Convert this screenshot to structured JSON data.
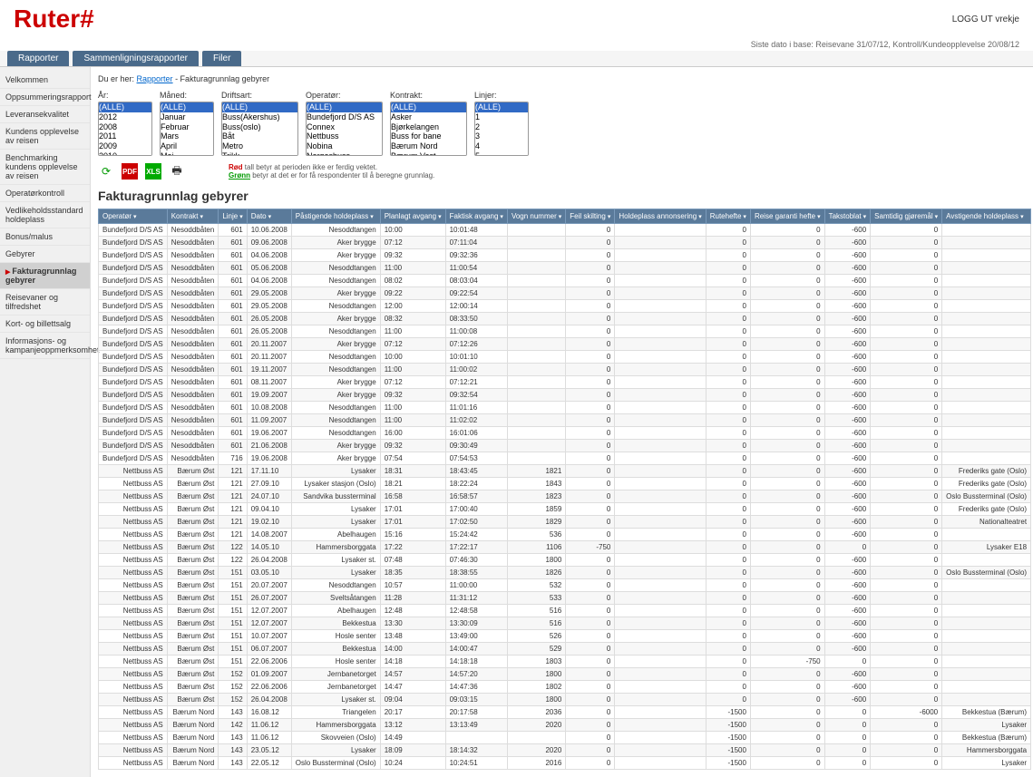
{
  "logo": "Ruter#",
  "logout_label": "LOGG UT",
  "logout_user": "vrekje",
  "infobar": "Siste dato i base: Reisevane 31/07/12, Kontroll/Kundeopplevelse 20/08/12",
  "tabs": [
    "Rapporter",
    "Sammenligningsrapporter",
    "Filer"
  ],
  "sidebar": [
    "Velkommen",
    "Oppsummeringsrapport",
    "Leveransekvalitet",
    "Kundens opplevelse av reisen",
    "Benchmarking kundens opplevelse av reisen",
    "Operatørkontroll",
    "Vedlikeholdsstandard holdeplass",
    "Bonus/malus",
    "Gebyrer",
    "Fakturagrunnlag gebyrer",
    "Reisevaner og tilfredshet",
    "Kort- og billettsalg",
    "Informasjons- og kampanjeoppmerksomhet"
  ],
  "sidebar_active": 9,
  "breadcrumb_prefix": "Du er her: ",
  "breadcrumb_link": "Rapporter",
  "breadcrumb_tail": " - Fakturagrunnlag gebyrer",
  "filters": {
    "ar": {
      "label": "År:",
      "options": [
        "(ALLE)",
        "2012",
        "2008",
        "2011",
        "2009",
        "2010"
      ]
    },
    "maned": {
      "label": "Måned:",
      "options": [
        "(ALLE)",
        "Januar",
        "Februar",
        "Mars",
        "April",
        "Mai"
      ]
    },
    "driftsart": {
      "label": "Driftsart:",
      "options": [
        "(ALLE)",
        "Buss(Akershus)",
        "Buss(oslo)",
        "Båt",
        "Metro",
        "Trikk"
      ]
    },
    "operator": {
      "label": "Operatør:",
      "options": [
        "(ALLE)",
        "Bundefjord D/S AS",
        "Connex",
        "Nettbuss",
        "Nobina",
        "Norgesbuss"
      ]
    },
    "kontrakt": {
      "label": "Kontrakt:",
      "options": [
        "(ALLE)",
        "Asker",
        "Bjørkelangen",
        "Buss for bane",
        "Bærum Nord",
        "Bærum Vest"
      ]
    },
    "linjer": {
      "label": "Linjer:",
      "options": [
        "(ALLE)",
        "1",
        "2",
        "3",
        "4",
        "5"
      ]
    }
  },
  "note_red": "Rød",
  "note_red_tail": " tall betyr at perioden ikke er ferdig vektet.",
  "note_green": "Grønn",
  "note_green_tail": " betyr at det er for få respondenter til å beregne grunnlag.",
  "section_title": "Fakturagrunnlag gebyrer",
  "columns": [
    "Operatør",
    "Kontrakt",
    "Linje",
    "Dato",
    "Påstigende holdeplass",
    "Planlagt avgang",
    "Faktisk avgang",
    "Vogn nummer",
    "Feil skilting",
    "Holdeplass annonsering",
    "Rutehefte",
    "Reise garanti hefte",
    "Takstoblat",
    "Samtidig gjøremål",
    "Avstigende holdeplass"
  ],
  "rows": [
    [
      "Bundefjord D/S AS",
      "Nesoddbåten",
      "601",
      "10.06.2008",
      "Nesoddtangen",
      "10:00",
      "10:01:48",
      "",
      "0",
      "",
      "0",
      "0",
      "-600",
      "0",
      ""
    ],
    [
      "Bundefjord D/S AS",
      "Nesoddbåten",
      "601",
      "09.06.2008",
      "Aker brygge",
      "07:12",
      "07:11:04",
      "",
      "0",
      "",
      "0",
      "0",
      "-600",
      "0",
      ""
    ],
    [
      "Bundefjord D/S AS",
      "Nesoddbåten",
      "601",
      "04.06.2008",
      "Aker brygge",
      "09:32",
      "09:32:36",
      "",
      "0",
      "",
      "0",
      "0",
      "-600",
      "0",
      ""
    ],
    [
      "Bundefjord D/S AS",
      "Nesoddbåten",
      "601",
      "05.06.2008",
      "Nesoddtangen",
      "11:00",
      "11:00:54",
      "",
      "0",
      "",
      "0",
      "0",
      "-600",
      "0",
      ""
    ],
    [
      "Bundefjord D/S AS",
      "Nesoddbåten",
      "601",
      "04.06.2008",
      "Nesoddtangen",
      "08:02",
      "08:03:04",
      "",
      "0",
      "",
      "0",
      "0",
      "-600",
      "0",
      ""
    ],
    [
      "Bundefjord D/S AS",
      "Nesoddbåten",
      "601",
      "29.05.2008",
      "Aker brygge",
      "09:22",
      "09:22:54",
      "",
      "0",
      "",
      "0",
      "0",
      "-600",
      "0",
      ""
    ],
    [
      "Bundefjord D/S AS",
      "Nesoddbåten",
      "601",
      "29.05.2008",
      "Nesoddtangen",
      "12:00",
      "12:00:14",
      "",
      "0",
      "",
      "0",
      "0",
      "-600",
      "0",
      ""
    ],
    [
      "Bundefjord D/S AS",
      "Nesoddbåten",
      "601",
      "26.05.2008",
      "Aker brygge",
      "08:32",
      "08:33:50",
      "",
      "0",
      "",
      "0",
      "0",
      "-600",
      "0",
      ""
    ],
    [
      "Bundefjord D/S AS",
      "Nesoddbåten",
      "601",
      "26.05.2008",
      "Nesoddtangen",
      "11:00",
      "11:00:08",
      "",
      "0",
      "",
      "0",
      "0",
      "-600",
      "0",
      ""
    ],
    [
      "Bundefjord D/S AS",
      "Nesoddbåten",
      "601",
      "20.11.2007",
      "Aker brygge",
      "07:12",
      "07:12:26",
      "",
      "0",
      "",
      "0",
      "0",
      "-600",
      "0",
      ""
    ],
    [
      "Bundefjord D/S AS",
      "Nesoddbåten",
      "601",
      "20.11.2007",
      "Nesoddtangen",
      "10:00",
      "10:01:10",
      "",
      "0",
      "",
      "0",
      "0",
      "-600",
      "0",
      ""
    ],
    [
      "Bundefjord D/S AS",
      "Nesoddbåten",
      "601",
      "19.11.2007",
      "Nesoddtangen",
      "11:00",
      "11:00:02",
      "",
      "0",
      "",
      "0",
      "0",
      "-600",
      "0",
      ""
    ],
    [
      "Bundefjord D/S AS",
      "Nesoddbåten",
      "601",
      "08.11.2007",
      "Aker brygge",
      "07:12",
      "07:12:21",
      "",
      "0",
      "",
      "0",
      "0",
      "-600",
      "0",
      ""
    ],
    [
      "Bundefjord D/S AS",
      "Nesoddbåten",
      "601",
      "19.09.2007",
      "Aker brygge",
      "09:32",
      "09:32:54",
      "",
      "0",
      "",
      "0",
      "0",
      "-600",
      "0",
      ""
    ],
    [
      "Bundefjord D/S AS",
      "Nesoddbåten",
      "601",
      "10.08.2008",
      "Nesoddtangen",
      "11:00",
      "11:01:16",
      "",
      "0",
      "",
      "0",
      "0",
      "-600",
      "0",
      ""
    ],
    [
      "Bundefjord D/S AS",
      "Nesoddbåten",
      "601",
      "11.09.2007",
      "Nesoddtangen",
      "11:00",
      "11:02:02",
      "",
      "0",
      "",
      "0",
      "0",
      "-600",
      "0",
      ""
    ],
    [
      "Bundefjord D/S AS",
      "Nesoddbåten",
      "601",
      "19.06.2007",
      "Nesoddtangen",
      "16:00",
      "16:01:06",
      "",
      "0",
      "",
      "0",
      "0",
      "-600",
      "0",
      ""
    ],
    [
      "Bundefjord D/S AS",
      "Nesoddbåten",
      "601",
      "21.06.2008",
      "Aker brygge",
      "09:32",
      "09:30:49",
      "",
      "0",
      "",
      "0",
      "0",
      "-600",
      "0",
      ""
    ],
    [
      "Bundefjord D/S AS",
      "Nesoddbåten",
      "716",
      "19.06.2008",
      "Aker brygge",
      "07:54",
      "07:54:53",
      "",
      "0",
      "",
      "0",
      "0",
      "-600",
      "0",
      ""
    ],
    [
      "Nettbuss AS",
      "Bærum Øst",
      "121",
      "17.11.10",
      "Lysaker",
      "18:31",
      "18:43:45",
      "1821",
      "0",
      "",
      "0",
      "0",
      "-600",
      "0",
      "Frederiks gate (Oslo)"
    ],
    [
      "Nettbuss AS",
      "Bærum Øst",
      "121",
      "27.09.10",
      "Lysaker stasjon (Oslo)",
      "18:21",
      "18:22:24",
      "1843",
      "0",
      "",
      "0",
      "0",
      "-600",
      "0",
      "Frederiks gate (Oslo)"
    ],
    [
      "Nettbuss AS",
      "Bærum Øst",
      "121",
      "24.07.10",
      "Sandvika bussterminal",
      "16:58",
      "16:58:57",
      "1823",
      "0",
      "",
      "0",
      "0",
      "-600",
      "0",
      "Oslo Bussterminal (Oslo)"
    ],
    [
      "Nettbuss AS",
      "Bærum Øst",
      "121",
      "09.04.10",
      "Lysaker",
      "17:01",
      "17:00:40",
      "1859",
      "0",
      "",
      "0",
      "0",
      "-600",
      "0",
      "Frederiks gate (Oslo)"
    ],
    [
      "Nettbuss AS",
      "Bærum Øst",
      "121",
      "19.02.10",
      "Lysaker",
      "17:01",
      "17:02:50",
      "1829",
      "0",
      "",
      "0",
      "0",
      "-600",
      "0",
      "Nationalteatret"
    ],
    [
      "Nettbuss AS",
      "Bærum Øst",
      "121",
      "14.08.2007",
      "Abelhaugen",
      "15:16",
      "15:24:42",
      "536",
      "0",
      "",
      "0",
      "0",
      "-600",
      "0",
      ""
    ],
    [
      "Nettbuss AS",
      "Bærum Øst",
      "122",
      "14.05.10",
      "Hammersborggata",
      "17:22",
      "17:22:17",
      "1106",
      "-750",
      "",
      "0",
      "0",
      "0",
      "0",
      "Lysaker E18"
    ],
    [
      "Nettbuss AS",
      "Bærum Øst",
      "122",
      "26.04.2008",
      "Lysaker st.",
      "07:48",
      "07:46:30",
      "1800",
      "0",
      "",
      "0",
      "0",
      "-600",
      "0",
      ""
    ],
    [
      "Nettbuss AS",
      "Bærum Øst",
      "151",
      "03.05.10",
      "Lysaker",
      "18:35",
      "18:38:55",
      "1826",
      "0",
      "",
      "0",
      "0",
      "-600",
      "0",
      "Oslo Bussterminal (Oslo)"
    ],
    [
      "Nettbuss AS",
      "Bærum Øst",
      "151",
      "20.07.2007",
      "Nesoddtangen",
      "10:57",
      "11:00:00",
      "532",
      "0",
      "",
      "0",
      "0",
      "-600",
      "0",
      ""
    ],
    [
      "Nettbuss AS",
      "Bærum Øst",
      "151",
      "26.07.2007",
      "Sveltsåtangen",
      "11:28",
      "11:31:12",
      "533",
      "0",
      "",
      "0",
      "0",
      "-600",
      "0",
      ""
    ],
    [
      "Nettbuss AS",
      "Bærum Øst",
      "151",
      "12.07.2007",
      "Abelhaugen",
      "12:48",
      "12:48:58",
      "516",
      "0",
      "",
      "0",
      "0",
      "-600",
      "0",
      ""
    ],
    [
      "Nettbuss AS",
      "Bærum Øst",
      "151",
      "12.07.2007",
      "Bekkestua",
      "13:30",
      "13:30:09",
      "516",
      "0",
      "",
      "0",
      "0",
      "-600",
      "0",
      ""
    ],
    [
      "Nettbuss AS",
      "Bærum Øst",
      "151",
      "10.07.2007",
      "Hosle senter",
      "13:48",
      "13:49:00",
      "526",
      "0",
      "",
      "0",
      "0",
      "-600",
      "0",
      ""
    ],
    [
      "Nettbuss AS",
      "Bærum Øst",
      "151",
      "06.07.2007",
      "Bekkestua",
      "14:00",
      "14:00:47",
      "529",
      "0",
      "",
      "0",
      "0",
      "-600",
      "0",
      ""
    ],
    [
      "Nettbuss AS",
      "Bærum Øst",
      "151",
      "22.06.2006",
      "Hosle senter",
      "14:18",
      "14:18:18",
      "1803",
      "0",
      "",
      "0",
      "-750",
      "0",
      "0",
      ""
    ],
    [
      "Nettbuss AS",
      "Bærum Øst",
      "152",
      "01.09.2007",
      "Jernbanetorget",
      "14:57",
      "14:57:20",
      "1800",
      "0",
      "",
      "0",
      "0",
      "-600",
      "0",
      ""
    ],
    [
      "Nettbuss AS",
      "Bærum Øst",
      "152",
      "22.06.2006",
      "Jernbanetorget",
      "14:47",
      "14:47:36",
      "1802",
      "0",
      "",
      "0",
      "0",
      "-600",
      "0",
      ""
    ],
    [
      "Nettbuss AS",
      "Bærum Øst",
      "152",
      "26.04.2008",
      "Lysaker st.",
      "09:04",
      "09:03:15",
      "1800",
      "0",
      "",
      "0",
      "0",
      "-600",
      "0",
      ""
    ],
    [
      "Nettbuss AS",
      "Bærum Nord",
      "143",
      "16.08.12",
      "Triangelen",
      "20:17",
      "20:17:58",
      "2036",
      "0",
      "",
      "-1500",
      "0",
      "0",
      "-6000",
      "Bekkestua (Bærum)"
    ],
    [
      "Nettbuss AS",
      "Bærum Nord",
      "142",
      "11.06.12",
      "Hammersborggata",
      "13:12",
      "13:13:49",
      "2020",
      "0",
      "",
      "-1500",
      "0",
      "0",
      "0",
      "Lysaker"
    ],
    [
      "Nettbuss AS",
      "Bærum Nord",
      "143",
      "11.06.12",
      "Skovveien (Oslo)",
      "14:49",
      "",
      "",
      "0",
      "",
      "-1500",
      "0",
      "0",
      "0",
      "Bekkestua (Bærum)"
    ],
    [
      "Nettbuss AS",
      "Bærum Nord",
      "143",
      "23.05.12",
      "Lysaker",
      "18:09",
      "18:14:32",
      "2020",
      "0",
      "",
      "-1500",
      "0",
      "0",
      "0",
      "Hammersborggata"
    ],
    [
      "Nettbuss AS",
      "Bærum Nord",
      "143",
      "22.05.12",
      "Oslo Bussterminal (Oslo)",
      "10:24",
      "10:24:51",
      "2016",
      "0",
      "",
      "-1500",
      "0",
      "0",
      "0",
      "Lysaker"
    ]
  ]
}
